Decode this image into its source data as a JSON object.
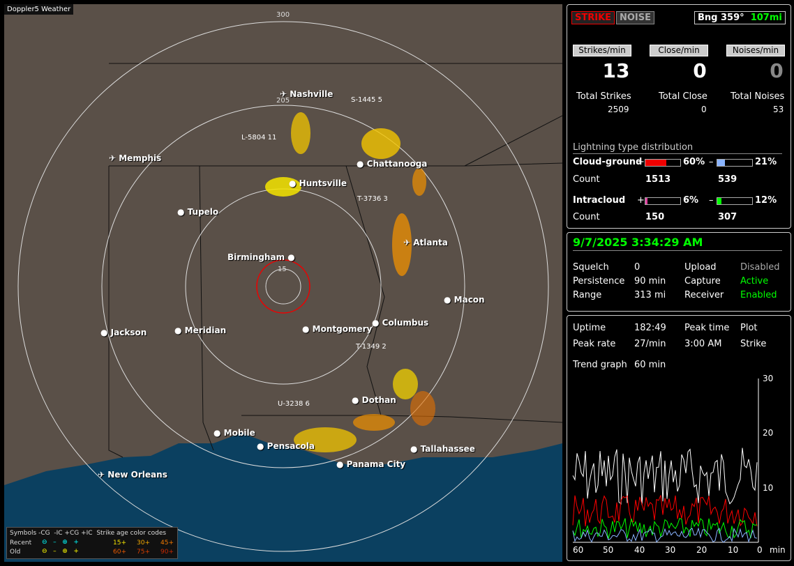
{
  "app_title": "Doppler5 Weather",
  "map": {
    "ring_labels": [
      "300",
      "205",
      "15"
    ],
    "cities": [
      {
        "name": "Nashville",
        "icon": "airport-icon"
      },
      {
        "name": "Memphis",
        "icon": "airport-icon"
      },
      {
        "name": "Chattanooga",
        "icon": "city-dot"
      },
      {
        "name": "Huntsville",
        "icon": "city-dot"
      },
      {
        "name": "Tupelo",
        "icon": "city-dot"
      },
      {
        "name": "Atlanta",
        "icon": "airport-icon"
      },
      {
        "name": "Birmingham",
        "icon": "city-dot"
      },
      {
        "name": "Macon",
        "icon": "city-dot"
      },
      {
        "name": "Jackson",
        "icon": "city-dot"
      },
      {
        "name": "Meridian",
        "icon": "city-dot"
      },
      {
        "name": "Montgomery",
        "icon": "city-dot"
      },
      {
        "name": "Columbus",
        "icon": "city-dot"
      },
      {
        "name": "Dothan",
        "icon": "city-dot"
      },
      {
        "name": "Mobile",
        "icon": "city-dot"
      },
      {
        "name": "Pensacola",
        "icon": "city-dot"
      },
      {
        "name": "Tallahassee",
        "icon": "city-dot"
      },
      {
        "name": "Panama City",
        "icon": "city-dot"
      },
      {
        "name": "New Orleans",
        "icon": "airport-icon"
      }
    ],
    "storm_tags": [
      "S-1445 5",
      "L-5804 11",
      "T-3736 3",
      "T-1349 2",
      "U-3238 6"
    ]
  },
  "legend": {
    "header": [
      "Symbols",
      "-CG",
      "-IC",
      "+CG",
      "+IC",
      "Strike age color codes"
    ],
    "recent_label": "Recent",
    "old_label": "Old",
    "recent_ages": [
      "15+",
      "30+",
      "45+"
    ],
    "old_ages": [
      "60+",
      "75+",
      "90+"
    ]
  },
  "top_panel": {
    "strike_btn": "STRIKE",
    "noise_btn": "NOISE",
    "bearing": "Bng 359°",
    "distance": "107mi",
    "strikes_min_label": "Strikes/min",
    "close_min_label": "Close/min",
    "noises_min_label": "Noises/min",
    "strikes_min": "13",
    "close_min": "0",
    "noises_min": "0",
    "total_strikes_label": "Total Strikes",
    "total_close_label": "Total Close",
    "total_noises_label": "Total Noises",
    "total_strikes": "2509",
    "total_close": "0",
    "total_noises": "53",
    "dist_title": "Lightning type distribution",
    "cg_label": "Cloud-ground",
    "cg_plus_sign": "+",
    "cg_minus_sign": "–",
    "cg_plus_pct": "60%",
    "cg_minus_pct": "21%",
    "cg_plus_frac": 0.6,
    "cg_minus_frac": 0.21,
    "count_label": "Count",
    "cg_plus_count": "1513",
    "cg_minus_count": "539",
    "ic_label": "Intracloud",
    "ic_plus_pct": "6%",
    "ic_minus_pct": "12%",
    "ic_plus_frac": 0.06,
    "ic_minus_frac": 0.12,
    "ic_plus_count": "150",
    "ic_minus_count": "307"
  },
  "status_panel": {
    "datetime": "9/7/2025 3:34:29 AM",
    "squelch_label": "Squelch",
    "squelch": "0",
    "persistence_label": "Persistence",
    "persistence": "90 min",
    "range_label": "Range",
    "range": "313 mi",
    "upload_label": "Upload",
    "upload": "Disabled",
    "capture_label": "Capture",
    "capture": "Active",
    "receiver_label": "Receiver",
    "receiver": "Enabled"
  },
  "trend_panel": {
    "uptime_label": "Uptime",
    "uptime": "182:49",
    "peak_time_label": "Peak time",
    "peak_time": "3:00 AM",
    "plot_label": "Plot",
    "plot": "Strike",
    "peak_rate_label": "Peak rate",
    "peak_rate": "27/min",
    "trend_label": "Trend graph",
    "trend": "60 min",
    "y_ticks": [
      "30",
      "20",
      "10"
    ],
    "x_ticks": [
      "60",
      "50",
      "40",
      "30",
      "20",
      "10",
      "0"
    ],
    "x_unit": "min"
  },
  "colors": {
    "red": "#ff0000",
    "green": "#00ff00",
    "white": "#ffffff",
    "blue": "#8ab4ff",
    "water": "#0b4060",
    "land": "#5a5048"
  }
}
